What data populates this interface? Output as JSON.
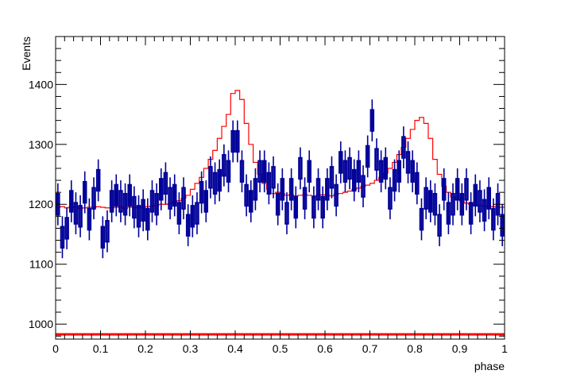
{
  "chart_data": {
    "type": "histogram",
    "xlabel": "phase",
    "ylabel": "Events",
    "xlim": [
      0,
      1
    ],
    "ylim": [
      975,
      1480
    ],
    "x_ticks": [
      "0",
      "0.1",
      "0.2",
      "0.3",
      "0.4",
      "0.5",
      "0.6",
      "0.7",
      "0.8",
      "0.9",
      "1"
    ],
    "x_tick_values": [
      0,
      0.1,
      0.2,
      0.3,
      0.4,
      0.5,
      0.6,
      0.7,
      0.8,
      0.9,
      1
    ],
    "y_ticks": [
      "1000",
      "1100",
      "1200",
      "1300",
      "1400"
    ],
    "y_tick_values": [
      1000,
      1100,
      1200,
      1300,
      1400
    ],
    "grid": false,
    "colors": {
      "data": "#000099",
      "model": "#ff0000",
      "baseline": "#ff0000"
    },
    "series": [
      {
        "style": "data-boxes-with-error-bars",
        "bin_width": 0.01,
        "values": [
          1200,
          1145,
          1160,
          1205,
          1185,
          1180,
          1220,
          1175,
          1210,
          1240,
          1145,
          1155,
          1205,
          1215,
          1205,
          1200,
          1215,
          1195,
          1180,
          1190,
          1175,
          1205,
          1200,
          1225,
          1235,
          1210,
          1215,
          1185,
          1210,
          1165,
          1180,
          1185,
          1220,
          1205,
          1245,
          1235,
          1240,
          1265,
          1255,
          1305,
          1305,
          1255,
          1215,
          1205,
          1225,
          1255,
          1255,
          1235,
          1245,
          1200,
          1225,
          1185,
          1225,
          1195,
          1260,
          1210,
          1255,
          1195,
          1225,
          1195,
          1225,
          1245,
          1215,
          1270,
          1255,
          1260,
          1240,
          1255,
          1230,
          1280,
          1340,
          1275,
          1255,
          1260,
          1210,
          1240,
          1255,
          1295,
          1270,
          1255,
          1235,
          1175,
          1210,
          1205,
          1200,
          1165,
          1225,
          1185,
          1200,
          1225,
          1200,
          1225,
          1185,
          1215,
          1205,
          1190,
          1210,
          1175,
          1200,
          1165
        ],
        "errors": [
          35,
          35,
          35,
          35,
          35,
          35,
          35,
          35,
          35,
          35,
          35,
          35,
          35,
          35,
          35,
          35,
          35,
          35,
          35,
          35,
          35,
          35,
          35,
          35,
          35,
          35,
          35,
          35,
          35,
          35,
          35,
          35,
          35,
          35,
          35,
          35,
          35,
          35,
          35,
          35,
          35,
          35,
          35,
          35,
          35,
          35,
          35,
          35,
          35,
          35,
          35,
          35,
          35,
          35,
          35,
          35,
          35,
          35,
          35,
          35,
          35,
          35,
          35,
          35,
          35,
          35,
          35,
          35,
          35,
          35,
          35,
          35,
          35,
          35,
          35,
          35,
          35,
          35,
          35,
          35,
          35,
          35,
          35,
          35,
          35,
          35,
          35,
          35,
          35,
          35,
          35,
          35,
          35,
          35,
          35,
          35,
          35,
          35,
          35,
          35
        ]
      },
      {
        "style": "step",
        "bin_width": 0.01,
        "values": [
          1195,
          1196,
          1194,
          1196,
          1195,
          1193,
          1194,
          1195,
          1195,
          1196,
          1195,
          1194,
          1194,
          1195,
          1196,
          1193,
          1195,
          1195,
          1194,
          1195,
          1196,
          1197,
          1198,
          1200,
          1200,
          1201,
          1204,
          1206,
          1210,
          1215,
          1225,
          1235,
          1245,
          1260,
          1275,
          1290,
          1310,
          1330,
          1350,
          1385,
          1390,
          1375,
          1335,
          1300,
          1270,
          1250,
          1235,
          1225,
          1218,
          1220,
          1218,
          1215,
          1216,
          1214,
          1215,
          1216,
          1215,
          1214,
          1215,
          1216,
          1215,
          1214,
          1217,
          1218,
          1220,
          1222,
          1225,
          1227,
          1230,
          1232,
          1235,
          1240,
          1245,
          1252,
          1260,
          1270,
          1283,
          1295,
          1310,
          1325,
          1340,
          1345,
          1335,
          1310,
          1275,
          1250,
          1230,
          1220,
          1212,
          1208,
          1205,
          1202,
          1200,
          1199,
          1198,
          1197,
          1196,
          1196,
          1195,
          1195
        ]
      },
      {
        "style": "constant-line",
        "value": 983
      }
    ]
  }
}
